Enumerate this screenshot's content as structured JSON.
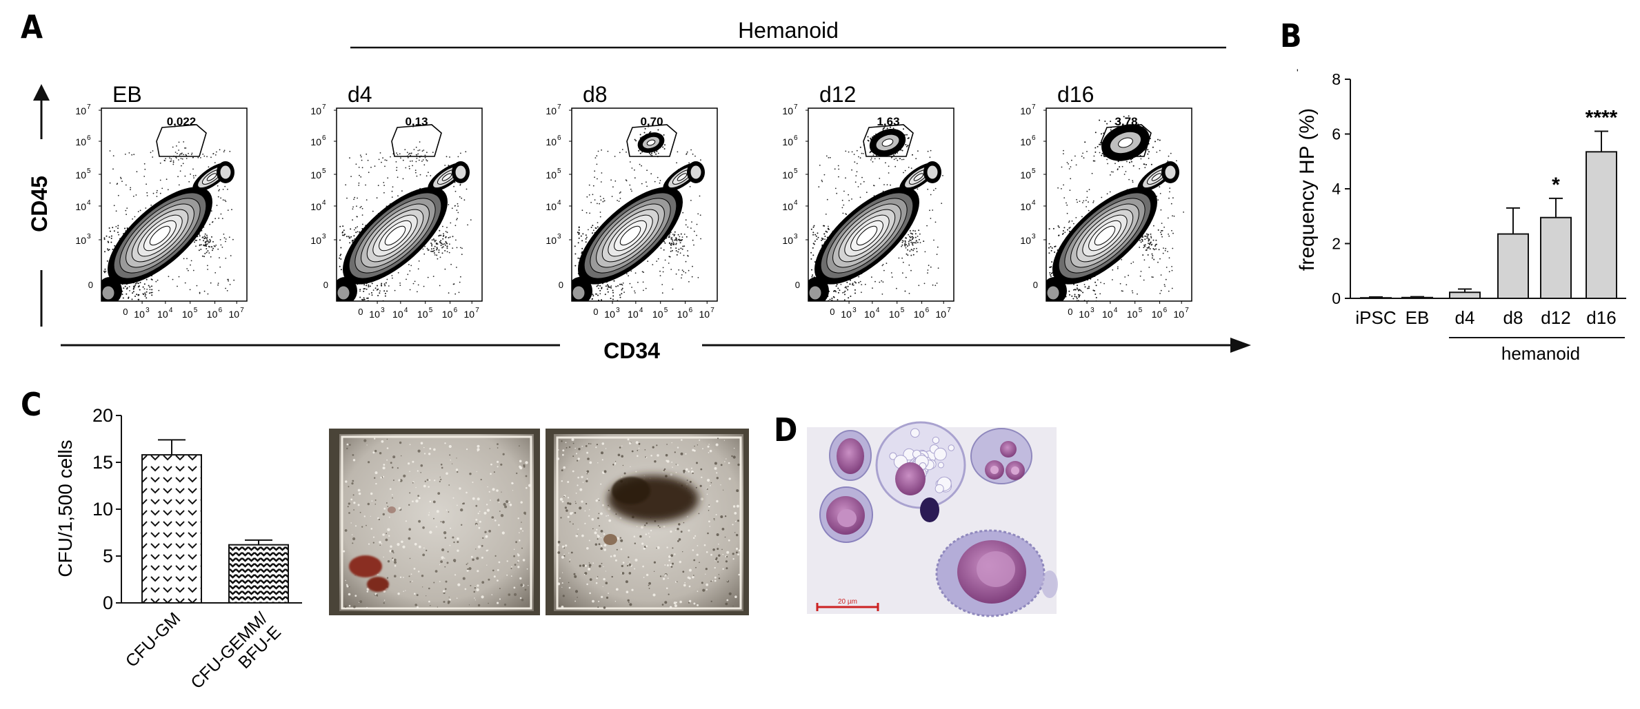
{
  "panel_letters": [
    "A",
    "B",
    "C",
    "D"
  ],
  "colors": {
    "panel_letter": "#4f6477",
    "bar_fill": "#d3d3d3",
    "ink": "#111111",
    "scale_bar": "#cc2222",
    "stain_bg": "#f0eef4",
    "nucleus": "#9a4f96",
    "cytoplasm": "#bdb6db"
  },
  "panel_a": {
    "group_label": "Hemanoid",
    "y_axis_label": "CD45",
    "x_axis_label": "CD34",
    "tick_labels": {
      "zero": "0",
      "decades": [
        "3",
        "4",
        "5",
        "6",
        "7"
      ],
      "base": "10"
    },
    "plots": [
      {
        "label": "EB",
        "gate_value": "0,022",
        "hp_cluster": "none"
      },
      {
        "label": "d4",
        "gate_value": "0,13",
        "hp_cluster": "none"
      },
      {
        "label": "d8",
        "gate_value": "0,70",
        "hp_cluster": "small"
      },
      {
        "label": "d12",
        "gate_value": "1,63",
        "hp_cluster": "medium"
      },
      {
        "label": "d16",
        "gate_value": "3,78",
        "hp_cluster": "large"
      }
    ]
  },
  "panel_b": {
    "group_label": "hemanoid",
    "stray_mark": "'",
    "chart_data": {
      "type": "bar",
      "categories": [
        "iPSC",
        "EB",
        "d4",
        "d8",
        "d12",
        "d16"
      ],
      "values": [
        0.02,
        0.03,
        0.22,
        2.35,
        2.95,
        5.35
      ],
      "error": [
        0.03,
        0.03,
        0.12,
        0.95,
        0.7,
        0.75
      ],
      "significance": [
        "",
        "",
        "",
        "",
        "*",
        "****"
      ],
      "ylabel": "frequency HP (%)",
      "ylim": [
        0,
        8
      ],
      "yticks": [
        0,
        2,
        4,
        6,
        8
      ],
      "grid": false
    }
  },
  "panel_c": {
    "chart_data": {
      "type": "bar",
      "categories": [
        "CFU-GM",
        "CFU-GEMM/\nBFU-E"
      ],
      "category_lines": [
        [
          "CFU-GM"
        ],
        [
          "CFU-GEMM/",
          "BFU-E"
        ]
      ],
      "values": [
        15.8,
        6.2
      ],
      "error": [
        1.6,
        0.5
      ],
      "patterns": [
        "chevron",
        "dense"
      ],
      "ylabel": "CFU/1,500 cells",
      "ylim": [
        0,
        20
      ],
      "yticks": [
        0,
        5,
        10,
        15,
        20
      ],
      "grid": false
    }
  },
  "panel_d": {
    "scale_bar_label": "20 µm"
  }
}
